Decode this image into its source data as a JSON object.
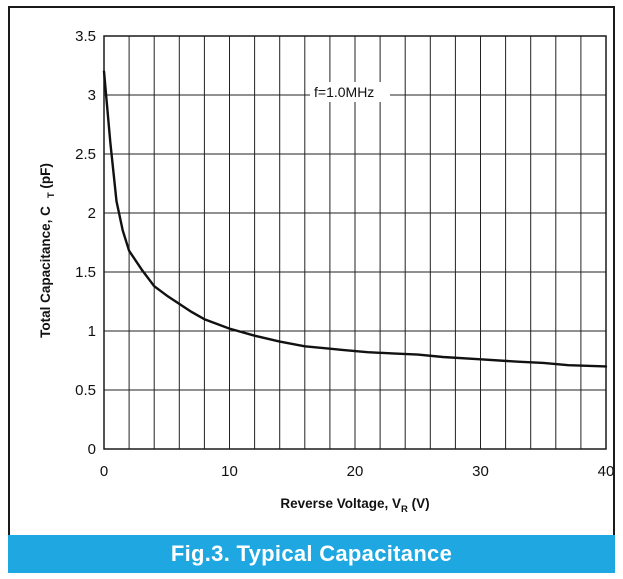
{
  "figure": {
    "caption": "Fig.3.  Typical Capacitance",
    "caption_bar_color": "#1ea7e1",
    "frame_color": "#1a1a1a"
  },
  "chart_data": {
    "type": "line",
    "title": "",
    "xlabel": {
      "main": "Reverse Voltage, V",
      "sub": "R",
      "unit": " (V)"
    },
    "ylabel": {
      "main": "Total Capacitance, C",
      "sub": "T",
      "unit": " (pF)"
    },
    "xlim": [
      0,
      40
    ],
    "ylim": [
      0,
      3.5
    ],
    "x_ticks": [
      "0",
      "10",
      "20",
      "30",
      "40"
    ],
    "y_ticks": [
      "0",
      "0.5",
      "1",
      "1.5",
      "2",
      "2.5",
      "3",
      "3.5"
    ],
    "grid": true,
    "annotation": "f=1.0MHz",
    "series": [
      {
        "x": [
          0,
          0.5,
          1,
          1.5,
          2,
          3,
          4,
          5,
          6,
          7,
          8,
          10,
          12,
          14,
          16,
          18,
          19,
          21,
          23,
          25,
          27,
          30,
          33,
          35,
          37,
          40
        ],
        "y": [
          3.2,
          2.6,
          2.1,
          1.85,
          1.68,
          1.52,
          1.38,
          1.3,
          1.23,
          1.16,
          1.1,
          1.02,
          0.96,
          0.91,
          0.87,
          0.85,
          0.84,
          0.82,
          0.81,
          0.8,
          0.78,
          0.76,
          0.74,
          0.73,
          0.71,
          0.7
        ]
      }
    ]
  }
}
